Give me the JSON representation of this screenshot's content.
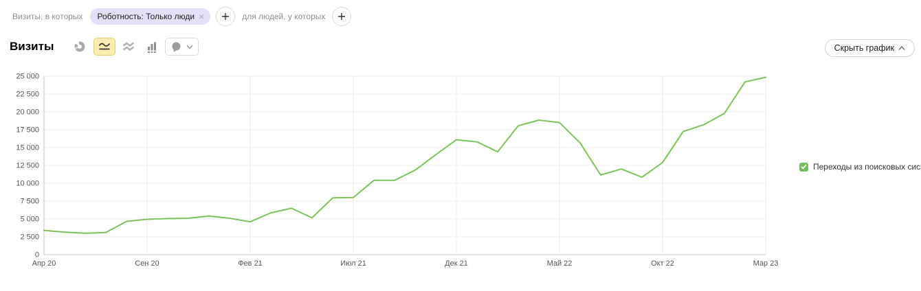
{
  "filter_bar": {
    "context_label": "Визиты, в которых",
    "chip": {
      "label": "Роботность: Только люди",
      "close_icon": "×"
    },
    "add_segment_label": "+",
    "audience_label": "для людей, у которых",
    "add_audience_label": "+"
  },
  "header": {
    "title": "Визиты",
    "tools": [
      {
        "name": "pie-chart",
        "selected": false
      },
      {
        "name": "line-chart",
        "selected": true
      },
      {
        "name": "stacked-area-chart",
        "selected": false
      },
      {
        "name": "bar-chart",
        "selected": false
      },
      {
        "name": "comments-dropdown",
        "selected": false
      }
    ],
    "hide_chart_button": "Скрыть график"
  },
  "legend": {
    "label": "Переходы из поисковых систем",
    "checked": true
  },
  "colors": {
    "line": "#7cc35a",
    "legend_check": "#72bd5d",
    "selected_tool_bg": "#f8ecb0",
    "selected_tool_border": "#e2cb79",
    "chip_bg": "#e3e1f7",
    "grid": "#ededed",
    "axis": "#c9c9c9"
  },
  "chart_data": {
    "type": "line",
    "title": "Визиты",
    "xlabel": "",
    "ylabel": "",
    "ylim": [
      0,
      25000
    ],
    "ytick_step": 2500,
    "grid": true,
    "legend_position": "right",
    "x_tick_every": 5,
    "x_tick_labels": [
      "Апр 20",
      "Сен 20",
      "Фев 21",
      "Июл 21",
      "Дек 21",
      "Май 22",
      "Окт 22",
      "Мар 23"
    ],
    "x": [
      "Апр 20",
      "Май 20",
      "Июн 20",
      "Июл 20",
      "Авг 20",
      "Сен 20",
      "Окт 20",
      "Ноя 20",
      "Дек 20",
      "Янв 21",
      "Фев 21",
      "Мар 21",
      "Апр 21",
      "Май 21",
      "Июн 21",
      "Июл 21",
      "Авг 21",
      "Сен 21",
      "Окт 21",
      "Ноя 21",
      "Дек 21",
      "Янв 22",
      "Фев 22",
      "Мар 22",
      "Апр 22",
      "Май 22",
      "Июн 22",
      "Июл 22",
      "Авг 22",
      "Сен 22",
      "Окт 22",
      "Ноя 22",
      "Дек 22",
      "Янв 23",
      "Фев 23",
      "Мар 23"
    ],
    "series": [
      {
        "name": "Переходы из поисковых систем",
        "color": "#7cc35a",
        "values": [
          3400,
          3150,
          3000,
          3100,
          4650,
          4950,
          5050,
          5100,
          5400,
          5100,
          4600,
          5850,
          6500,
          5150,
          7950,
          8000,
          10400,
          10400,
          11850,
          14000,
          16100,
          15800,
          14400,
          18050,
          18850,
          18500,
          15650,
          11150,
          12000,
          10850,
          12900,
          17250,
          18200,
          19800,
          24200,
          24850
        ]
      }
    ]
  }
}
